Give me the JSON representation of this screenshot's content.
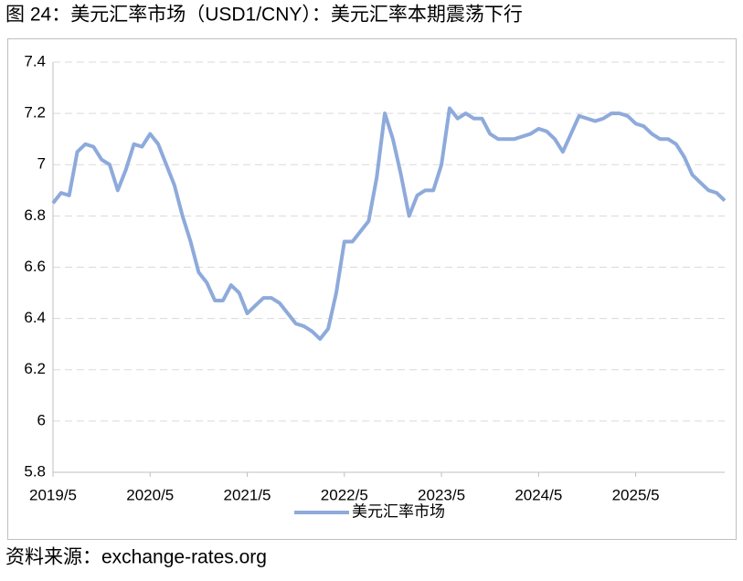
{
  "chart_data": {
    "type": "line",
    "title": "图 24：美元汇率市场（USD1/CNY）：美元汇率本期震荡下行",
    "source": "资料来源：exchange-rates.org",
    "x": [
      "2019/5",
      "2019/6",
      "2019/7",
      "2019/8",
      "2019/9",
      "2019/10",
      "2019/11",
      "2019/12",
      "2020/1",
      "2020/2",
      "2020/3",
      "2020/4",
      "2020/5",
      "2020/6",
      "2020/7",
      "2020/8",
      "2020/9",
      "2020/10",
      "2020/11",
      "2020/12",
      "2021/1",
      "2021/2",
      "2021/3",
      "2021/4",
      "2021/5",
      "2021/6",
      "2021/7",
      "2021/8",
      "2021/9",
      "2021/10",
      "2021/11",
      "2021/12",
      "2022/1",
      "2022/2",
      "2022/3",
      "2022/4",
      "2022/5",
      "2022/6",
      "2022/7",
      "2022/8",
      "2022/9",
      "2022/10",
      "2022/11",
      "2022/12",
      "2023/1",
      "2023/2",
      "2023/3",
      "2023/4",
      "2023/5",
      "2023/6",
      "2023/7",
      "2023/8",
      "2023/9",
      "2023/10",
      "2023/11",
      "2023/12",
      "2024/1",
      "2024/2",
      "2024/3",
      "2024/4",
      "2024/5",
      "2024/6",
      "2024/7",
      "2024/8",
      "2024/9",
      "2024/10",
      "2024/11",
      "2024/12",
      "2025/1",
      "2025/2",
      "2025/3",
      "2025/4",
      "2025/5",
      "2025/6",
      "2025/7",
      "2025/8",
      "2025/9",
      "2025/10",
      "2025/11",
      "2025/12",
      "2026/1",
      "2026/2",
      "2026/3",
      "2026/4"
    ],
    "series": [
      {
        "name": "美元汇率市场",
        "color": "#8eaadb",
        "values": [
          6.85,
          6.89,
          6.88,
          7.05,
          7.08,
          7.07,
          7.02,
          7.0,
          6.9,
          6.98,
          7.08,
          7.07,
          7.12,
          7.08,
          7.0,
          6.92,
          6.8,
          6.7,
          6.58,
          6.54,
          6.47,
          6.47,
          6.53,
          6.5,
          6.42,
          6.45,
          6.48,
          6.48,
          6.46,
          6.42,
          6.38,
          6.37,
          6.35,
          6.32,
          6.36,
          6.5,
          6.7,
          6.7,
          6.74,
          6.78,
          6.95,
          7.2,
          7.1,
          6.96,
          6.8,
          6.88,
          6.9,
          6.9,
          7.0,
          7.22,
          7.18,
          7.2,
          7.18,
          7.18,
          7.12,
          7.1,
          7.1,
          7.1,
          7.11,
          7.12,
          7.14,
          7.13,
          7.1,
          7.05,
          7.12,
          7.19,
          7.18,
          7.17,
          7.18,
          7.2,
          7.2,
          7.19,
          7.16,
          7.15,
          7.12,
          7.1,
          7.1,
          7.08,
          7.03,
          6.96,
          6.93,
          6.9,
          6.89,
          6.86
        ]
      }
    ],
    "xticks": [
      "2019/5",
      "2020/5",
      "2021/5",
      "2022/5",
      "2023/5",
      "2024/5",
      "2025/5"
    ],
    "ylim": [
      5.8,
      7.4
    ],
    "yticks": [
      5.8,
      6,
      6.2,
      6.4,
      6.6,
      6.8,
      7,
      7.2,
      7.4
    ],
    "grid": true,
    "legend": "bottom"
  }
}
